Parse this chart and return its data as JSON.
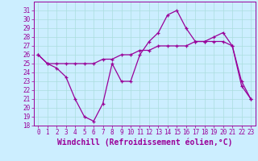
{
  "x": [
    0,
    1,
    2,
    3,
    4,
    5,
    6,
    7,
    8,
    9,
    10,
    11,
    12,
    13,
    14,
    15,
    16,
    17,
    18,
    19,
    20,
    21,
    22,
    23
  ],
  "line1": [
    26,
    25,
    24.5,
    23.5,
    21,
    19,
    18.5,
    20.5,
    25,
    23,
    23,
    26,
    27.5,
    28.5,
    30.5,
    31,
    29,
    27.5,
    27.5,
    28,
    28.5,
    27,
    23,
    21
  ],
  "line2": [
    26,
    25,
    25,
    25,
    25,
    25,
    25,
    25.5,
    25.5,
    26,
    26,
    26.5,
    26.5,
    27,
    27,
    27,
    27,
    27.5,
    27.5,
    27.5,
    27.5,
    27,
    22.5,
    21
  ],
  "line_color": "#990099",
  "bg_color": "#cceeff",
  "grid_color": "#aadddd",
  "xlabel": "Windchill (Refroidissement éolien,°C)",
  "ylim": [
    18,
    32
  ],
  "xlim": [
    -0.5,
    23.5
  ],
  "yticks": [
    18,
    19,
    20,
    21,
    22,
    23,
    24,
    25,
    26,
    27,
    28,
    29,
    30,
    31
  ],
  "xticks": [
    0,
    1,
    2,
    3,
    4,
    5,
    6,
    7,
    8,
    9,
    10,
    11,
    12,
    13,
    14,
    15,
    16,
    17,
    18,
    19,
    20,
    21,
    22,
    23
  ],
  "tick_fontsize": 5.5,
  "xlabel_fontsize": 7.0,
  "linewidth": 0.9,
  "markersize": 3.0
}
